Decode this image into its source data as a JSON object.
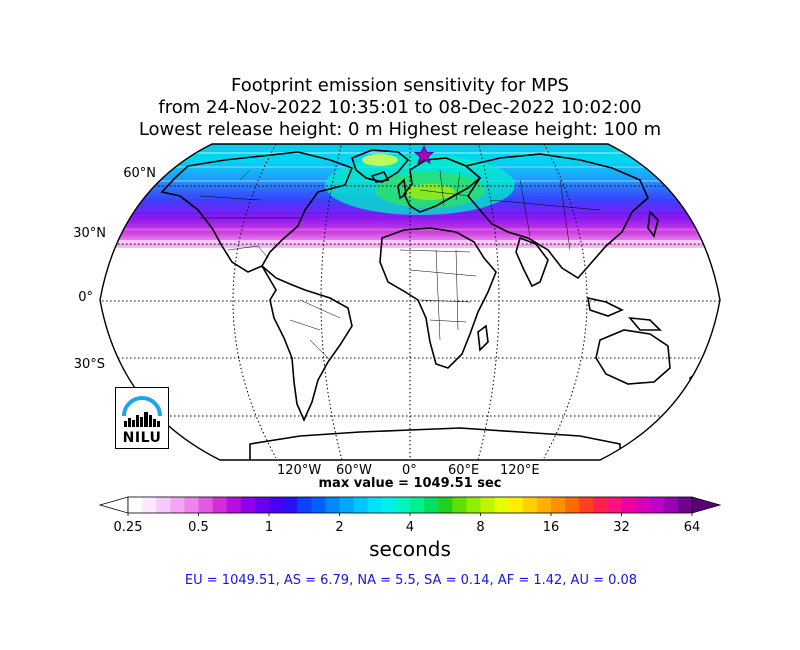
{
  "title": {
    "line1": "Footprint emission sensitivity for MPS",
    "line2": "from 24-Nov-2022 10:35:01 to 08-Dec-2022 10:02:00",
    "line3": "Lowest release height: 0 m       Highest release height: 100 m"
  },
  "map": {
    "projection": "robinson",
    "lat_labels": [
      "60°N",
      "30°N",
      "0°",
      "30°S"
    ],
    "lon_labels": [
      "120°W",
      "60°W",
      "0°",
      "60°E",
      "120°E"
    ],
    "marker": "star-icon",
    "marker_color": "#b000b0"
  },
  "max_value_text": "max value = 1049.51 sec",
  "colorbar": {
    "ticks": [
      "0.25",
      "0.5",
      "1",
      "2",
      "4",
      "8",
      "16",
      "32",
      "64"
    ],
    "label": "seconds",
    "colors": [
      "#ffffff",
      "#fde8fd",
      "#f9c9f9",
      "#f3a7f3",
      "#ec84ec",
      "#e25ae2",
      "#d22dd9",
      "#b50fe2",
      "#8f00ea",
      "#6a00f0",
      "#4a00f5",
      "#2a10f8",
      "#1040ff",
      "#0060ff",
      "#0088ff",
      "#00a8ff",
      "#00c8ff",
      "#00e0ff",
      "#00f0ee",
      "#00f5c0",
      "#00f090",
      "#00e060",
      "#20d020",
      "#60e000",
      "#90ee00",
      "#c0f500",
      "#e8ff00",
      "#ffee00",
      "#ffd000",
      "#ffb000",
      "#ff9000",
      "#ff6a00",
      "#ff4020",
      "#ff2050",
      "#ff1080",
      "#f000a0",
      "#d800b8",
      "#c000c8",
      "#9800b8",
      "#700090"
    ]
  },
  "logo": {
    "text": "NILU"
  },
  "stats": "EU = 1049.51,  AS = 6.79,  NA = 5.5,  SA = 0.14,  AF = 1.42,  AU = 0.08"
}
